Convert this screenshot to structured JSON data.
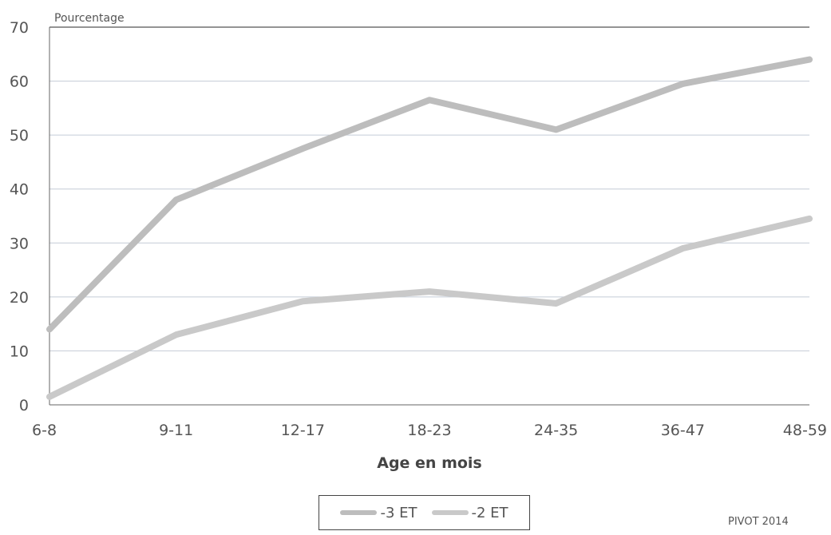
{
  "chart_data": {
    "type": "line",
    "title": "",
    "ylabel": "Pourcentage",
    "xlabel": "Age en mois",
    "categories": [
      "6-8",
      "9-11",
      "12-17",
      "18-23",
      "24-35",
      "36-47",
      "48-59"
    ],
    "series": [
      {
        "name": "-3 ET",
        "values": [
          14,
          38,
          47.5,
          56.5,
          51,
          59.5,
          64
        ],
        "color": "#bdbdbd"
      },
      {
        "name": "-2 ET",
        "values": [
          1.5,
          13,
          19.2,
          21,
          18.8,
          29,
          34.5
        ],
        "color": "#c9c9c9"
      }
    ],
    "ylim": [
      0,
      70
    ],
    "yticks": [
      0,
      10,
      20,
      30,
      40,
      50,
      60,
      70
    ],
    "grid": true,
    "legend_position": "bottom"
  },
  "source": "PIVOT 2014"
}
